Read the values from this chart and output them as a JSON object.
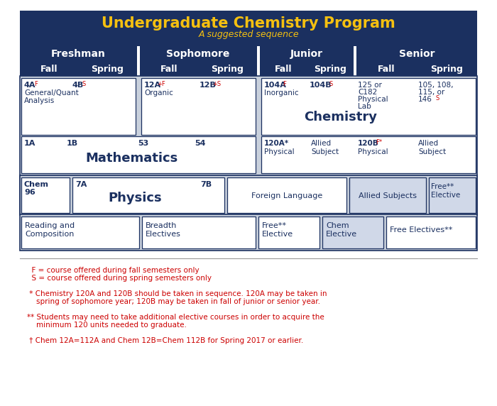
{
  "title": "Undergraduate Chemistry Program",
  "subtitle": "A suggested sequence",
  "title_color": "#F5C010",
  "subtitle_color": "#F5C010",
  "header_bg": "#1B3060",
  "year_header_bg": "#1B3060",
  "grid_outer_bg": "#C8D0DC",
  "cell_bg_white": "#FFFFFF",
  "cell_bg_light": "#D0D8E8",
  "border_color": "#1B3060",
  "text_dark": "#1B3060",
  "text_red": "#CC0000",
  "text_white": "#FFFFFF",
  "fig_bg": "#FFFFFF",
  "footnote_lines": [
    [
      "  F = course offered during fall semesters only",
      false
    ],
    [
      "  S = course offered during spring semesters only",
      false
    ],
    [
      "",
      false
    ],
    [
      " * Chemistry 120A and 120B should be taken in sequence. 120A may be taken in",
      false
    ],
    [
      "    spring of sophomore year; 120B may be taken in fall of junior or senior year.",
      false
    ],
    [
      "",
      false
    ],
    [
      "** Students may need to take additional elective courses in order to acquire the",
      false
    ],
    [
      "    minimum 120 units needed to graduate.",
      false
    ],
    [
      "",
      false
    ],
    [
      " † Chem 12A=112A and Chem 12B=Chem 112B for Spring 2017 or earlier.",
      false
    ]
  ]
}
